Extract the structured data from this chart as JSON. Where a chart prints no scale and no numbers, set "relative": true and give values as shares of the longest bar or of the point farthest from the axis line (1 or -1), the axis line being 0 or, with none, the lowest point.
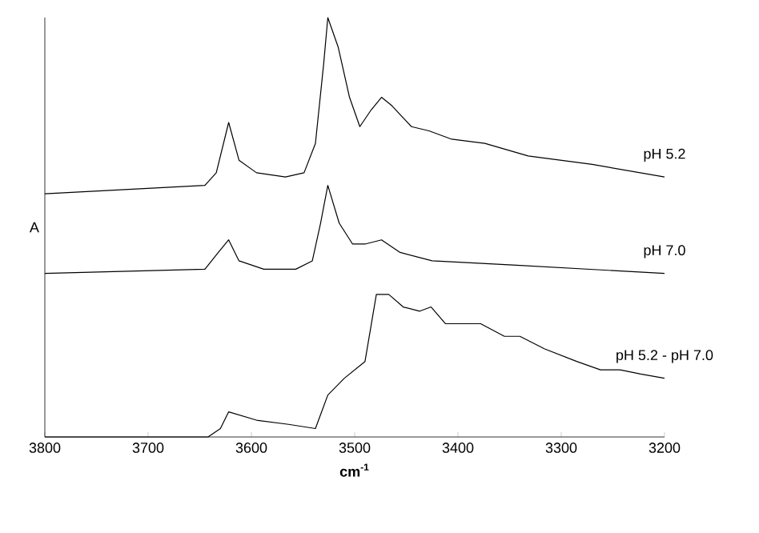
{
  "chart_data": {
    "type": "line",
    "relative": true,
    "xlabel": "cm$^{-1}$",
    "ylabel": "A",
    "xlim": [
      3800,
      3200
    ],
    "xticks": [
      3800,
      3700,
      3600,
      3500,
      3400,
      3300,
      3200
    ],
    "series": [
      {
        "name": "pH 5.2",
        "color": "#000000",
        "x": [
          3800,
          3645,
          3634,
          3622,
          3612,
          3595,
          3567,
          3549,
          3538,
          3530,
          3526,
          3516,
          3505,
          3495,
          3484,
          3474,
          3464,
          3445,
          3428,
          3406,
          3374,
          3332,
          3270,
          3200
        ],
        "values": [
          0.58,
          0.6,
          0.63,
          0.75,
          0.66,
          0.63,
          0.62,
          0.63,
          0.7,
          0.89,
          1,
          0.93,
          0.81,
          0.74,
          0.78,
          0.81,
          0.79,
          0.74,
          0.73,
          0.71,
          0.7,
          0.67,
          0.65,
          0.62
        ]
      },
      {
        "name": "pH 7.0",
        "color": "#000000",
        "x": [
          3800,
          3645,
          3632,
          3622,
          3612,
          3588,
          3557,
          3541,
          3533,
          3526,
          3515,
          3502,
          3490,
          3474,
          3456,
          3425,
          3347,
          3200
        ],
        "values": [
          0.39,
          0.4,
          0.44,
          0.47,
          0.42,
          0.4,
          0.4,
          0.42,
          0.51,
          0.6,
          0.51,
          0.46,
          0.46,
          0.47,
          0.44,
          0.42,
          0.41,
          0.39
        ]
      },
      {
        "name": "pH 5.2 - pH 7.0",
        "color": "#000000",
        "x": [
          3800,
          3642,
          3630,
          3622,
          3595,
          3564,
          3538,
          3526,
          3510,
          3490,
          3479,
          3467,
          3453,
          3437,
          3426,
          3412,
          3397,
          3378,
          3355,
          3340,
          3316,
          3285,
          3262,
          3243,
          3223,
          3200
        ],
        "values": [
          0,
          0,
          0.02,
          0.06,
          0.04,
          0.03,
          0.02,
          0.1,
          0.14,
          0.18,
          0.34,
          0.34,
          0.31,
          0.3,
          0.31,
          0.27,
          0.27,
          0.27,
          0.24,
          0.24,
          0.21,
          0.18,
          0.16,
          0.16,
          0.15,
          0.14
        ]
      }
    ]
  }
}
